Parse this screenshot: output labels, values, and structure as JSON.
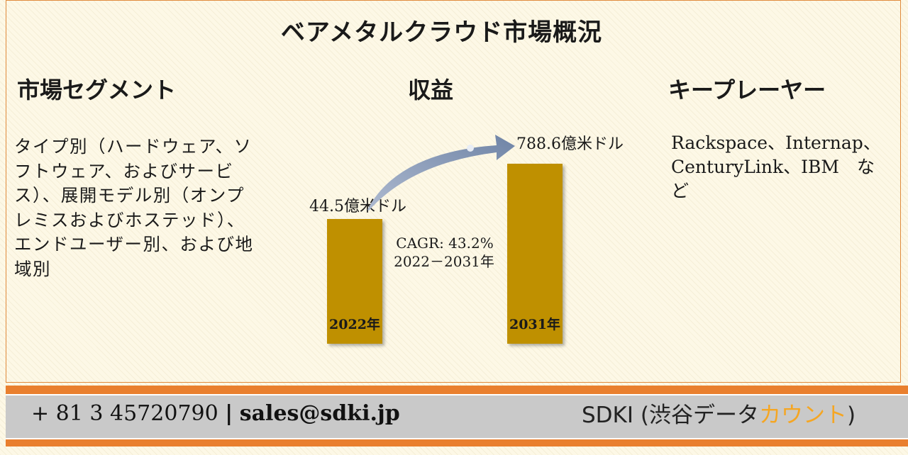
{
  "title": "ベアメタルクラウド市場概況",
  "segments": {
    "heading": "市場セグメント",
    "text": "タイプ別（ハードウェア、ソフトウェア、およびサービス）、展開モデル別（オンプレミスおよびホステッド）、エンドユーザー別、および地域別"
  },
  "revenue": {
    "heading": "収益"
  },
  "key_players": {
    "heading": "キープレーヤー",
    "text": "Rackspace、Internap、CenturyLink、IBM　など"
  },
  "chart_data": {
    "type": "bar",
    "categories": [
      "2022年",
      "2031年"
    ],
    "values": [
      44.5,
      788.6
    ],
    "value_labels": [
      "44.5億米ドル",
      "788.6億米ドル"
    ],
    "annotation": [
      "CAGR: 43.2%",
      "2022－2031年"
    ],
    "bar_color": "#bf9000",
    "arrow_color": "#8497b0"
  },
  "footer": {
    "phone": "+ 81 3 45720790",
    "separator": "|",
    "email": "sales@sdki.jp",
    "brand_prefix": "SDKI (渋谷データ",
    "brand_accent": "カウント",
    "brand_suffix": ")",
    "accent_color": "#f5a623",
    "stripe_color": "#e97f2e"
  }
}
